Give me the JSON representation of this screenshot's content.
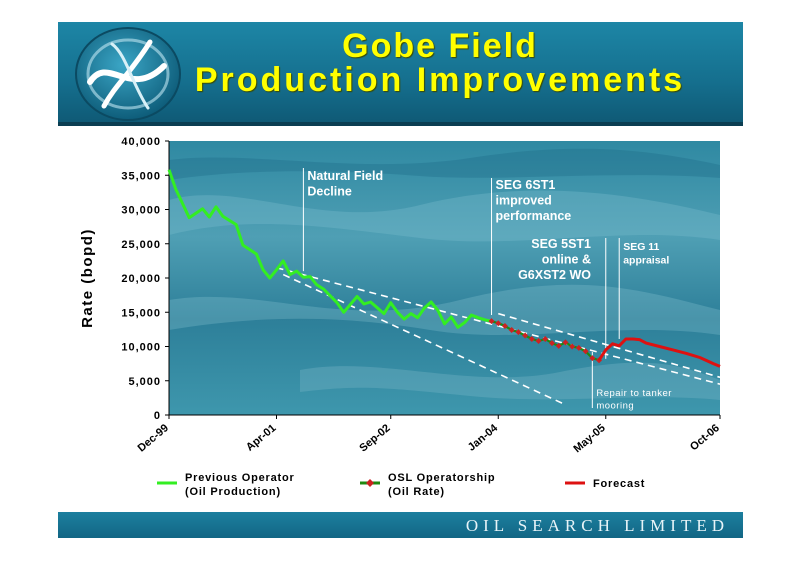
{
  "slide": {
    "title_line1": "Gobe Field",
    "title_line2": "Production Improvements",
    "footer": "OIL SEARCH LIMITED"
  },
  "colors": {
    "title": "#ffff00",
    "previous_operator": "#33ee22",
    "osl_line": "#1f8a10",
    "osl_marker": "#cc2222",
    "forecast": "#dd1111",
    "trend": "#ffffff"
  },
  "chart_data": {
    "type": "line",
    "ylabel": "Rate (bopd)",
    "xlabel": "",
    "ylim": [
      0,
      40000
    ],
    "yticks": [
      0,
      5000,
      10000,
      15000,
      20000,
      25000,
      30000,
      35000,
      40000
    ],
    "ytick_labels": [
      "0",
      "5,000",
      "10,000",
      "15,000",
      "20,000",
      "25,000",
      "30,000",
      "35,000",
      "40,000"
    ],
    "x_range": [
      "1999-12",
      "2006-10"
    ],
    "xticks": [
      "1999-12",
      "2001-04",
      "2002-09",
      "2004-01",
      "2005-05",
      "2006-10"
    ],
    "xtick_labels": [
      "Dec-99",
      "Apr-01",
      "Sep-02",
      "Jan-04",
      "May-05",
      "Oct-06"
    ],
    "series": [
      {
        "name": "Previous Operator (Oil Production)",
        "x": [
          "1999-12",
          "2000-01",
          "2000-03",
          "2000-05",
          "2000-06",
          "2000-07",
          "2000-08",
          "2000-10",
          "2000-11",
          "2001-01",
          "2001-02",
          "2001-03",
          "2001-04",
          "2001-05",
          "2001-06",
          "2001-07",
          "2001-08",
          "2001-09",
          "2001-10",
          "2001-11",
          "2002-01",
          "2002-02",
          "2002-04",
          "2002-05",
          "2002-06",
          "2002-08",
          "2002-09",
          "2002-10",
          "2002-11",
          "2002-12",
          "2003-01",
          "2003-02",
          "2003-03",
          "2003-04",
          "2003-05",
          "2003-06",
          "2003-07",
          "2003-08",
          "2003-09",
          "2003-10",
          "2003-11",
          "2003-12"
        ],
        "values": [
          35800,
          33000,
          28800,
          30100,
          28900,
          30400,
          29000,
          27800,
          24800,
          23500,
          21200,
          20000,
          21200,
          22500,
          20500,
          21000,
          20100,
          20200,
          19000,
          18400,
          16400,
          15000,
          17300,
          16200,
          16500,
          14800,
          16400,
          15000,
          14000,
          14800,
          14200,
          15600,
          16500,
          15300,
          13300,
          14300,
          12800,
          13500,
          14600,
          14200,
          13900,
          13700
        ]
      },
      {
        "name": "OSL Operatorship (Oil Rate)",
        "x": [
          "2003-12",
          "2004-01",
          "2004-02",
          "2004-03",
          "2004-04",
          "2004-05",
          "2004-06",
          "2004-07",
          "2004-08",
          "2004-09",
          "2004-10",
          "2004-11",
          "2004-12",
          "2005-01",
          "2005-02",
          "2005-03",
          "2005-04"
        ],
        "values": [
          13700,
          13400,
          13000,
          12400,
          12100,
          11600,
          11100,
          10800,
          11100,
          10500,
          10100,
          10600,
          10000,
          9800,
          9300,
          8300,
          8000
        ]
      },
      {
        "name": "Forecast",
        "x": [
          "2005-04",
          "2005-05",
          "2005-06",
          "2005-07",
          "2005-08",
          "2005-09",
          "2005-10",
          "2005-11",
          "2006-01",
          "2006-03",
          "2006-05",
          "2006-07",
          "2006-09",
          "2006-10"
        ],
        "values": [
          8000,
          9500,
          10400,
          10100,
          11100,
          11100,
          11000,
          10500,
          10000,
          9500,
          9000,
          8400,
          7500,
          7100
        ]
      }
    ],
    "trend_lines": [
      {
        "x": [
          "2001-05",
          "2004-11"
        ],
        "values": [
          20500,
          1500
        ]
      },
      {
        "x": [
          "2001-04",
          "2006-10"
        ],
        "values": [
          21500,
          4500
        ]
      },
      {
        "x": [
          "2004-01",
          "2006-10"
        ],
        "values": [
          14800,
          5500
        ]
      }
    ],
    "annotations": [
      {
        "text": [
          "Natural Field",
          "Decline"
        ],
        "x": "2001-08",
        "align": "left"
      },
      {
        "text": [
          "SEG 6ST1",
          "improved",
          "performance"
        ],
        "x": "2003-12",
        "align": "left"
      },
      {
        "text": [
          "SEG 5ST1",
          "online &",
          "G6XST2 WO"
        ],
        "x": "2005-05",
        "align": "right"
      },
      {
        "text": [
          "SEG 11",
          "appraisal"
        ],
        "x": "2005-07",
        "align": "left"
      },
      {
        "text": [
          "Repair to tanker",
          "mooring"
        ],
        "x": "2005-03",
        "align": "left"
      }
    ],
    "legend": [
      {
        "label": [
          "Previous Operator",
          "(Oil Production)"
        ],
        "series": 0
      },
      {
        "label": [
          "OSL Operatorship",
          "(Oil Rate)"
        ],
        "series": 1
      },
      {
        "label": [
          "Forecast"
        ],
        "series": 2
      }
    ],
    "legend_position": "bottom",
    "grid": false
  }
}
